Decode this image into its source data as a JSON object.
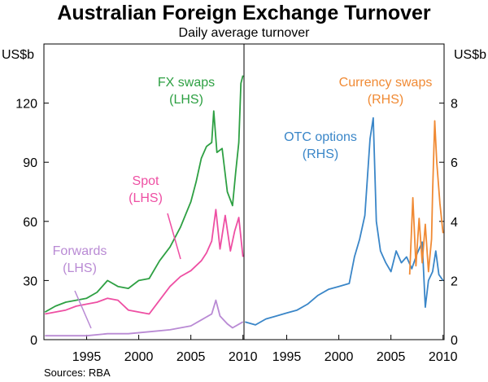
{
  "chart": {
    "title": "Australian Foreign Exchange Turnover",
    "subtitle": "Daily average turnover",
    "source": "Sources: RBA"
  },
  "colors": {
    "fx_swaps": "#2ea043",
    "spot": "#ee4fa3",
    "forwards": "#b98ad4",
    "otc_options": "#3a86c8",
    "currency_swaps": "#f08a34"
  },
  "chart_data": [
    {
      "type": "line",
      "panel": "left",
      "axis_unit": "US$b",
      "xlim": [
        1990.9,
        2010.1
      ],
      "ylim": [
        0,
        150
      ],
      "x_ticks": [
        1995,
        2000,
        2005,
        2010
      ],
      "y_ticks": [
        0,
        30,
        60,
        90,
        120
      ],
      "series": [
        {
          "name": "FX swaps",
          "label_lines": [
            "FX swaps",
            "(LHS)"
          ],
          "color_key": "fx_swaps",
          "x": [
            1991,
            1992,
            1993,
            1994,
            1995,
            1996,
            1997,
            1998,
            1999,
            2000,
            2001,
            2002,
            2003,
            2004,
            2005,
            2005.5,
            2006,
            2006.5,
            2007,
            2007.2,
            2007.5,
            2008,
            2008.5,
            2009,
            2009.3,
            2009.6,
            2009.8,
            2010
          ],
          "y": [
            14,
            17,
            19,
            20,
            21,
            24,
            30,
            27,
            26,
            30,
            31,
            40,
            47,
            57,
            70,
            80,
            92,
            98,
            100,
            116,
            95,
            97,
            75,
            68,
            85,
            100,
            130,
            134
          ]
        },
        {
          "name": "Spot",
          "label_lines": [
            "Spot",
            "(LHS)"
          ],
          "color_key": "spot",
          "x": [
            1991,
            1992,
            1993,
            1994,
            1995,
            1996,
            1997,
            1998,
            1999,
            2000,
            2001,
            2002,
            2003,
            2004,
            2005,
            2006,
            2006.5,
            2007,
            2007.4,
            2007.8,
            2008.3,
            2008.8,
            2009.2,
            2009.6,
            2010
          ],
          "y": [
            13,
            14,
            15,
            17,
            18,
            19,
            21,
            20,
            15,
            14,
            13,
            20,
            27,
            32,
            35,
            40,
            44,
            50,
            66,
            46,
            63,
            45,
            55,
            62,
            42
          ]
        },
        {
          "name": "Forwards",
          "label_lines": [
            "Forwards",
            "(LHS)"
          ],
          "color_key": "forwards",
          "x": [
            1991,
            1993,
            1995,
            1997,
            1999,
            2001,
            2003,
            2004,
            2005,
            2006,
            2007,
            2007.4,
            2007.8,
            2008.5,
            2009,
            2010
          ],
          "y": [
            2,
            2,
            2,
            3,
            3,
            4,
            5,
            6,
            7,
            10,
            13,
            20,
            12,
            8,
            6,
            9
          ]
        }
      ]
    },
    {
      "type": "line",
      "panel": "right",
      "axis_unit": "US$b",
      "xlim": [
        1990.9,
        2010.1
      ],
      "ylim": [
        0,
        10
      ],
      "x_ticks": [
        1995,
        2000,
        2005,
        2010
      ],
      "y_ticks": [
        0,
        2,
        4,
        6,
        8
      ],
      "series": [
        {
          "name": "OTC options",
          "label_lines": [
            "OTC options",
            "(RHS)"
          ],
          "color_key": "otc_options",
          "x": [
            1991,
            1992,
            1993,
            1994,
            1995,
            1996,
            1997,
            1998,
            1999,
            2000,
            2001,
            2001.5,
            2002,
            2002.5,
            2003,
            2003.3,
            2003.6,
            2004,
            2004.5,
            2005,
            2005.5,
            2006,
            2006.5,
            2007,
            2007.5,
            2008,
            2008.3,
            2008.6,
            2009,
            2009.3,
            2009.6,
            2010
          ],
          "y": [
            0.6,
            0.5,
            0.7,
            0.8,
            0.9,
            1.0,
            1.2,
            1.5,
            1.7,
            1.8,
            1.9,
            2.8,
            3.4,
            4.2,
            6.8,
            7.5,
            4.0,
            3.0,
            2.6,
            2.3,
            3.0,
            2.6,
            2.8,
            2.4,
            2.9,
            3.3,
            1.1,
            2.0,
            2.3,
            3.0,
            2.2,
            2.0
          ]
        },
        {
          "name": "Currency swaps",
          "label_lines": [
            "Currency swaps",
            "(RHS)"
          ],
          "color_key": "currency_swaps",
          "x": [
            2006.8,
            2007.1,
            2007.4,
            2007.7,
            2008.0,
            2008.3,
            2008.6,
            2008.9,
            2009.0,
            2009.2,
            2009.4,
            2009.7,
            2010
          ],
          "y": [
            2.2,
            4.8,
            2.5,
            4.1,
            2.6,
            3.9,
            2.3,
            3.4,
            5.0,
            7.4,
            6.0,
            4.6,
            3.6
          ]
        }
      ]
    }
  ]
}
